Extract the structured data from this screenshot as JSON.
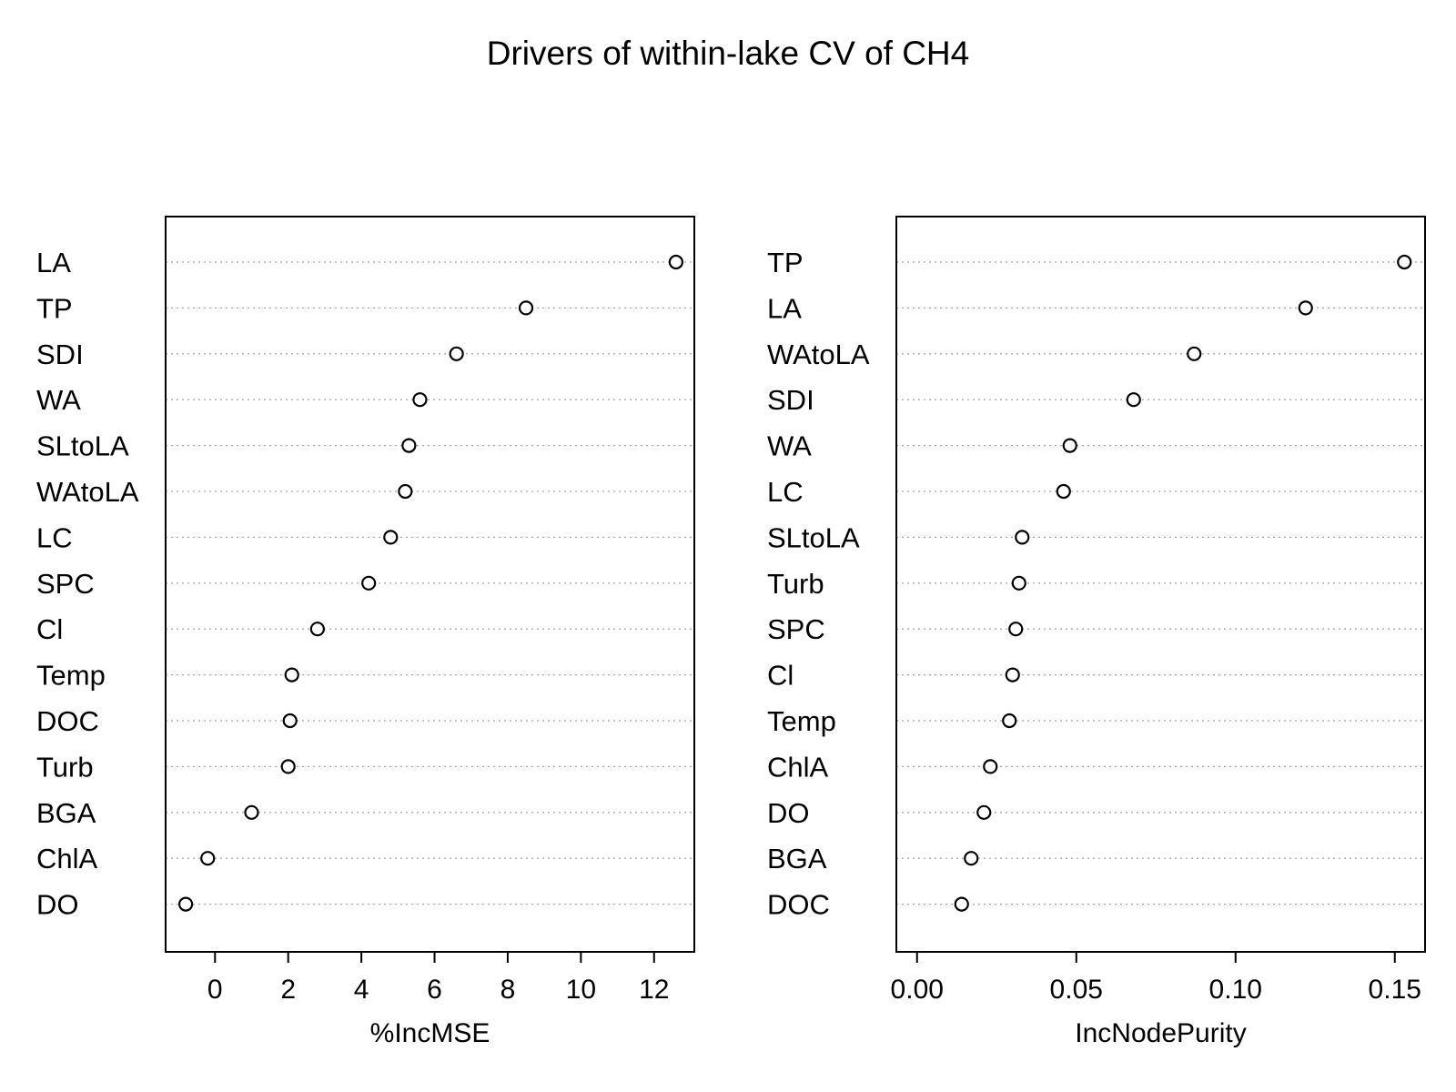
{
  "chart_data": {
    "title": "Drivers of within-lake CV of CH4",
    "panels": [
      {
        "type": "scatter",
        "style": "dotchart",
        "xlabel": "%IncMSE",
        "xlim": [
          -1.35,
          13.1
        ],
        "xticks": [
          0,
          2,
          4,
          6,
          8,
          10,
          12
        ],
        "tick_labels": [
          "0",
          "2",
          "4",
          "6",
          "8",
          "10",
          "12"
        ],
        "grid": "horizontal dotted guide lines",
        "categories": [
          "LA",
          "TP",
          "SDI",
          "WA",
          "SLtoLA",
          "WAtoLA",
          "LC",
          "SPC",
          "Cl",
          "Temp",
          "DOC",
          "Turb",
          "BGA",
          "ChlA",
          "DO"
        ],
        "values": [
          12.6,
          8.5,
          6.6,
          5.6,
          5.3,
          5.2,
          4.8,
          4.2,
          2.8,
          2.1,
          2.05,
          2.0,
          1.0,
          -0.2,
          -0.8
        ]
      },
      {
        "type": "scatter",
        "style": "dotchart",
        "xlabel": "IncNodePurity",
        "xlim": [
          -0.0065,
          0.1595
        ],
        "xticks": [
          0.0,
          0.05,
          0.1,
          0.15
        ],
        "tick_labels": [
          "0.00",
          "0.05",
          "0.10",
          "0.15"
        ],
        "grid": "horizontal dotted guide lines",
        "categories": [
          "TP",
          "LA",
          "WAtoLA",
          "SDI",
          "WA",
          "LC",
          "SLtoLA",
          "Turb",
          "SPC",
          "Cl",
          "Temp",
          "ChlA",
          "DO",
          "BGA",
          "DOC"
        ],
        "values": [
          0.153,
          0.122,
          0.087,
          0.068,
          0.048,
          0.046,
          0.033,
          0.032,
          0.031,
          0.03,
          0.029,
          0.023,
          0.021,
          0.017,
          0.014
        ]
      }
    ]
  }
}
